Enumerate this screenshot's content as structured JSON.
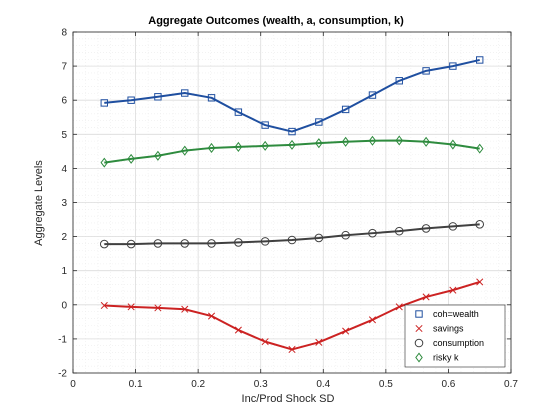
{
  "chart_data": {
    "type": "line",
    "title": "Aggregate Outcomes (wealth, a, consumption, k)",
    "xlabel": "Inc/Prod Shock SD",
    "ylabel": "Aggregate Levels",
    "xlim": [
      0,
      0.7
    ],
    "ylim": [
      -2,
      8
    ],
    "xticks": [
      "0",
      "0.1",
      "0.2",
      "0.3",
      "0.4",
      "0.5",
      "0.6",
      "0.7"
    ],
    "yticks": [
      "-2",
      "-1",
      "0",
      "1",
      "2",
      "3",
      "4",
      "5",
      "6",
      "7",
      "8"
    ],
    "grid": true,
    "legend_position": "bottom-right",
    "x": [
      0.05,
      0.0929,
      0.1357,
      0.1786,
      0.2214,
      0.2643,
      0.3071,
      0.35,
      0.3929,
      0.4357,
      0.4786,
      0.5214,
      0.5643,
      0.6071,
      0.65
    ],
    "series": [
      {
        "name": "coh=wealth",
        "color": "#1f4fa0",
        "marker": "square",
        "values": [
          5.92,
          6.0,
          6.1,
          6.21,
          6.07,
          5.65,
          5.27,
          5.08,
          5.36,
          5.73,
          6.15,
          6.57,
          6.86,
          7.0,
          7.18
        ]
      },
      {
        "name": "savings",
        "color": "#cc2222",
        "marker": "x",
        "values": [
          -0.02,
          -0.06,
          -0.09,
          -0.13,
          -0.33,
          -0.74,
          -1.08,
          -1.31,
          -1.1,
          -0.77,
          -0.44,
          -0.06,
          0.23,
          0.43,
          0.67
        ]
      },
      {
        "name": "consumption",
        "color": "#404040",
        "marker": "circle",
        "values": [
          1.78,
          1.78,
          1.8,
          1.8,
          1.8,
          1.83,
          1.86,
          1.9,
          1.96,
          2.04,
          2.1,
          2.16,
          2.24,
          2.3,
          2.36
        ]
      },
      {
        "name": "risky k",
        "color": "#2e8b3e",
        "marker": "diamond",
        "values": [
          4.17,
          4.28,
          4.37,
          4.52,
          4.6,
          4.63,
          4.66,
          4.69,
          4.74,
          4.78,
          4.81,
          4.82,
          4.78,
          4.7,
          4.58
        ]
      }
    ]
  }
}
